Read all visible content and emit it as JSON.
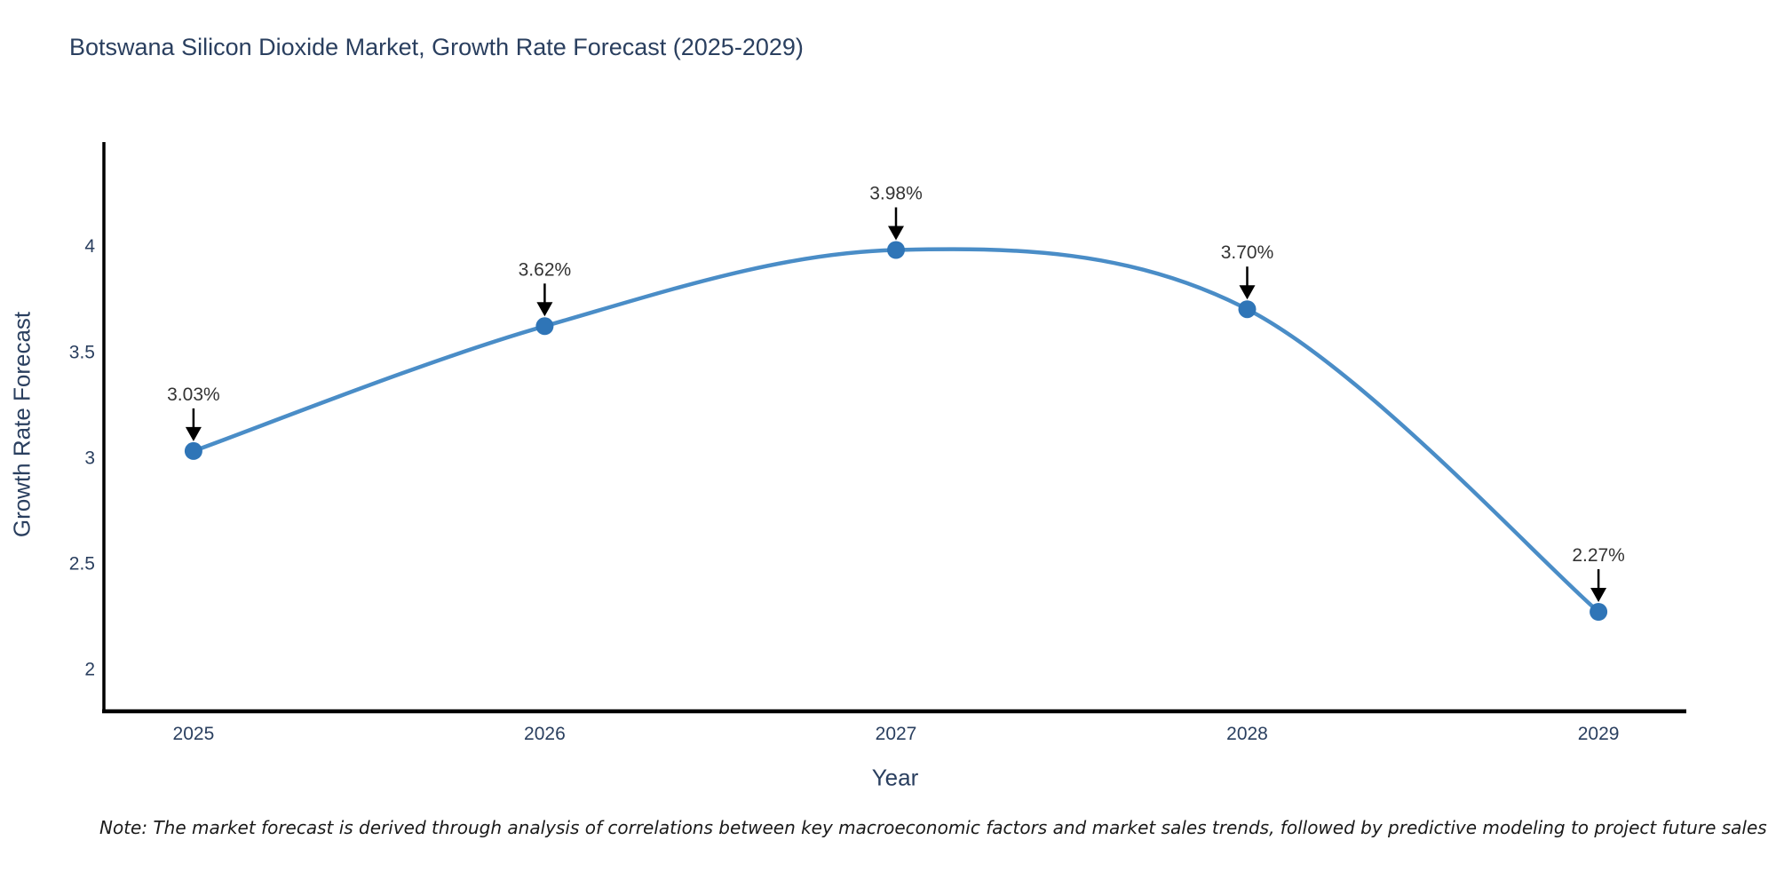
{
  "header": {
    "title": "Botswana Silicon Dioxide Market, Growth Rate Forecast (2025-2029)"
  },
  "footnote": {
    "text": "Note: The market forecast is derived through analysis of correlations between key macroeconomic factors and market sales trends, followed by predictive modeling to project future sales"
  },
  "chart_data": {
    "type": "line",
    "title": "Botswana Silicon Dioxide Market, Growth Rate Forecast (2025-2029)",
    "xlabel": "Year",
    "ylabel": "Growth Rate Forecast",
    "x": [
      2025,
      2026,
      2027,
      2028,
      2029
    ],
    "series": [
      {
        "name": "Growth Rate Forecast",
        "values": [
          3.03,
          3.62,
          3.98,
          3.7,
          2.27
        ]
      }
    ],
    "point_labels": [
      "3.03%",
      "3.62%",
      "3.98%",
      "3.70%",
      "2.27%"
    ],
    "xtick_labels": [
      "2025",
      "2026",
      "2027",
      "2028",
      "2029"
    ],
    "ytick_values": [
      2,
      2.5,
      3,
      3.5,
      4
    ],
    "ytick_labels": [
      "2",
      "2.5",
      "3",
      "3.5",
      "4"
    ],
    "xlim": [
      2024.745,
      2029.25
    ],
    "ylim": [
      1.8,
      4.49
    ],
    "grid": false,
    "legend": "none",
    "line_shape": "spline",
    "annotation_arrows": true,
    "colors": {
      "line": "#4a8dc7",
      "marker": "#2f75b7",
      "axis": "#000000",
      "tick_label": "#2a3f5f",
      "axis_title": "#2a3f5f",
      "chart_title": "#2a3f5f",
      "annotation_text": "#333333",
      "annotation_arrow": "#000000",
      "background": "#ffffff"
    }
  }
}
